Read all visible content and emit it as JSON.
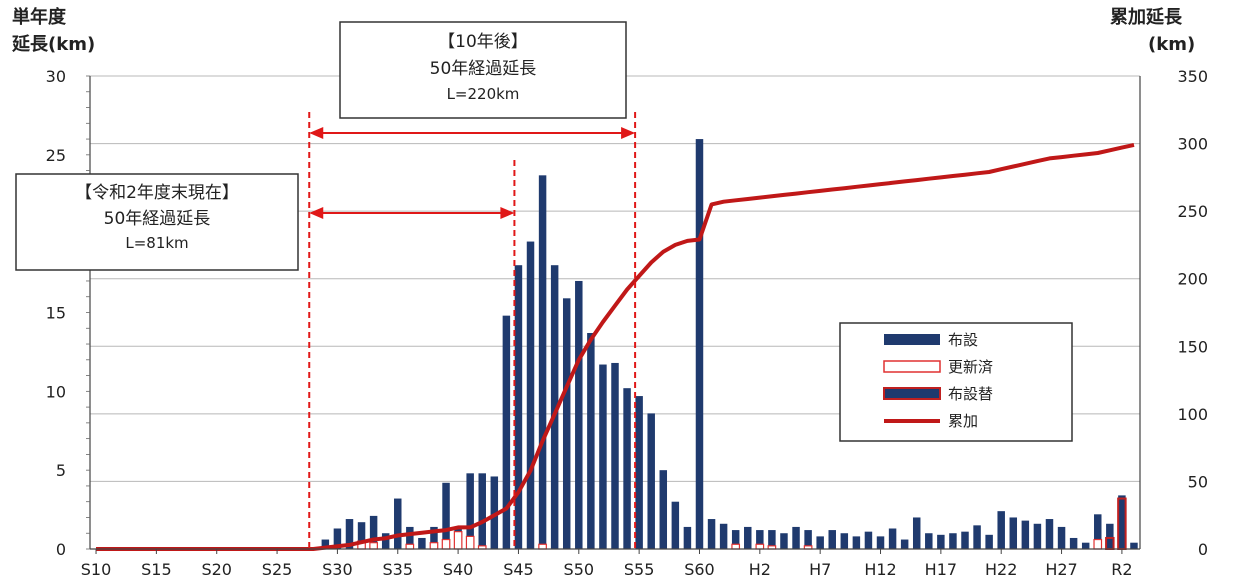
{
  "chart_data": {
    "type": "bar+line",
    "title": "",
    "ylabel_left": [
      "単年度",
      "延長(km)"
    ],
    "ylabel_right": [
      "累加延長",
      "(km)"
    ],
    "ylim_left": [
      0,
      30
    ],
    "ylim_right": [
      0,
      350
    ],
    "yticks_left": [
      0,
      5,
      10,
      15,
      25,
      30
    ],
    "yticks_right": [
      0,
      50,
      100,
      150,
      200,
      250,
      300,
      350
    ],
    "xtick_labels": [
      "S10",
      "S15",
      "S20",
      "S25",
      "S30",
      "S35",
      "S40",
      "S45",
      "S50",
      "S55",
      "S60",
      "H2",
      "H7",
      "H12",
      "H17",
      "H22",
      "H27",
      "R2"
    ],
    "grid": "horizontal",
    "legend_position": "center-right",
    "categories_start": "S10",
    "categories_count": 87,
    "series": [
      {
        "name": "布設",
        "type": "bar",
        "color": "#1f3a6e",
        "values": [
          0,
          0,
          0,
          0,
          0,
          0,
          0,
          0,
          0,
          0,
          0,
          0,
          0,
          0,
          0,
          0,
          0,
          0,
          0,
          0.6,
          1.3,
          1.9,
          1.7,
          2.1,
          1.0,
          3.2,
          1.4,
          0.7,
          1.4,
          4.2,
          1.3,
          4.8,
          4.8,
          4.6,
          14.8,
          18.0,
          19.5,
          23.7,
          18.0,
          15.9,
          17.0,
          13.7,
          11.7,
          11.8,
          10.2,
          9.7,
          8.6,
          5.0,
          3.0,
          1.4,
          26.0,
          1.9,
          1.6,
          1.2,
          1.4,
          1.2,
          1.2,
          1.0,
          1.4,
          1.2,
          0.8,
          1.2,
          1.0,
          0.8,
          1.1,
          0.8,
          1.3,
          0.6,
          2.0,
          1.0,
          0.9,
          1.0,
          1.1,
          1.5,
          0.9,
          2.4,
          2.0,
          1.8,
          1.6,
          1.9,
          1.4,
          0.7,
          0.4,
          2.2,
          1.6,
          3.4,
          0.4
        ]
      },
      {
        "name": "更新済",
        "type": "bar",
        "color": "#e03030",
        "values": [
          0,
          0,
          0,
          0,
          0,
          0,
          0,
          0,
          0,
          0,
          0,
          0,
          0,
          0,
          0,
          0,
          0,
          0,
          0,
          0,
          0,
          0,
          0.5,
          0.4,
          0,
          0,
          0.3,
          0,
          0.4,
          0.6,
          1.1,
          0.8,
          0.2,
          0,
          0,
          0,
          0,
          0.3,
          0,
          0,
          0,
          0,
          0,
          0,
          0,
          0,
          0,
          0,
          0,
          0,
          0,
          0,
          0,
          0.3,
          0,
          0.3,
          0.2,
          0,
          0,
          0.2,
          0,
          0,
          0,
          0,
          0,
          0,
          0,
          0,
          0,
          0,
          0,
          0,
          0,
          0,
          0,
          0,
          0,
          0,
          0,
          0,
          0,
          0,
          0,
          0.6,
          0,
          0,
          0
        ]
      },
      {
        "name": "布設替",
        "type": "bar",
        "color": "#1f3a6e",
        "border": "#c02020",
        "values": [
          0,
          0,
          0,
          0,
          0,
          0,
          0,
          0,
          0,
          0,
          0,
          0,
          0,
          0,
          0,
          0,
          0,
          0,
          0,
          0,
          0,
          0,
          0,
          0,
          0,
          0,
          0,
          0,
          0,
          0,
          0,
          0,
          0,
          0,
          0,
          0,
          0,
          0,
          0,
          0,
          0,
          0,
          0,
          0,
          0,
          0,
          0,
          0,
          0,
          0,
          0,
          0,
          0,
          0,
          0,
          0,
          0,
          0,
          0,
          0,
          0,
          0,
          0,
          0,
          0,
          0,
          0,
          0,
          0,
          0,
          0,
          0,
          0,
          0,
          0,
          0,
          0,
          0,
          0,
          0,
          0,
          0,
          0,
          0,
          0.7,
          3.2,
          0
        ]
      },
      {
        "name": "累加",
        "type": "line",
        "axis": "right",
        "color": "#c01818",
        "values": [
          0,
          0,
          0,
          0,
          0,
          0,
          0,
          0,
          0,
          0,
          0,
          0,
          0,
          0,
          0,
          0,
          0,
          0,
          0,
          1,
          2,
          3,
          5,
          7,
          8,
          10,
          11,
          12,
          13,
          14,
          16,
          16,
          20,
          25,
          30,
          42,
          58,
          80,
          100,
          120,
          140,
          155,
          168,
          180,
          192,
          202,
          212,
          220,
          225,
          228,
          229,
          255,
          257,
          258,
          259,
          260,
          261,
          262,
          263,
          264,
          265,
          266,
          267,
          268,
          269,
          270,
          271,
          272,
          273,
          274,
          275,
          276,
          277,
          278,
          279,
          281,
          283,
          285,
          287,
          289,
          290,
          291,
          292,
          293,
          295,
          297,
          299
        ]
      }
    ],
    "annotations": [
      {
        "title": "【令和2年度末現在】",
        "line2": "50年経過延長",
        "line3": "L=81km",
        "from": "S28",
        "to": "S45"
      },
      {
        "title": "【10年後】",
        "line2": "50年経過延長",
        "line3": "L=220km",
        "from": "S28",
        "to": "S55"
      }
    ]
  }
}
